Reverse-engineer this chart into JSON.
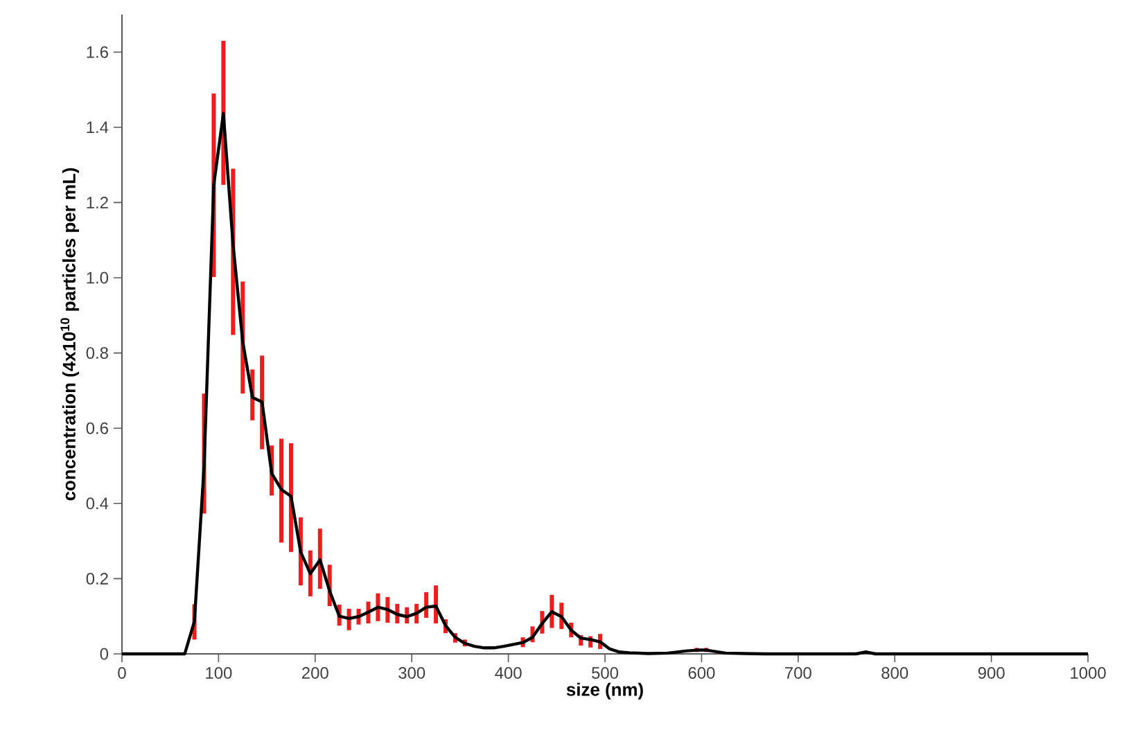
{
  "chart_data": {
    "type": "line",
    "xlabel": "size (nm)",
    "ylabel": "concentration (4x10$^{10}$ particles per mL)",
    "xlim": [
      0,
      1000
    ],
    "xticks": [
      0,
      100,
      200,
      300,
      400,
      500,
      600,
      700,
      800,
      900,
      1000
    ],
    "ylim": [
      0,
      1.7
    ],
    "yticks": [
      0,
      0.2,
      0.4,
      0.6,
      0.8,
      {
        "value": 1,
        "label": "1.0"
      },
      1.2,
      1.4,
      1.6
    ],
    "grid": false,
    "marker": "none",
    "line_style": "solid",
    "series": [
      {
        "color": "#000000",
        "x": [
          0,
          65,
          75,
          85,
          95,
          105,
          115,
          125,
          135,
          145,
          155,
          165,
          175,
          185,
          195,
          205,
          215,
          225,
          235,
          245,
          255,
          265,
          275,
          285,
          295,
          305,
          315,
          325,
          335,
          345,
          355,
          365,
          375,
          385,
          395,
          405,
          415,
          425,
          435,
          445,
          455,
          465,
          475,
          485,
          495,
          505,
          515,
          525,
          545,
          565,
          585,
          595,
          605,
          615,
          625,
          645,
          665,
          760,
          770,
          780,
          1000
        ],
        "values": [
          0,
          0,
          0.087,
          0.499,
          1.247,
          1.437,
          1.088,
          0.83,
          0.682,
          0.67,
          0.48,
          0.437,
          0.419,
          0.271,
          0.213,
          0.25,
          0.167,
          0.1,
          0.094,
          0.099,
          0.111,
          0.124,
          0.118,
          0.105,
          0.099,
          0.108,
          0.124,
          0.127,
          0.075,
          0.044,
          0.028,
          0.02,
          0.016,
          0.016,
          0.02,
          0.025,
          0.03,
          0.044,
          0.081,
          0.112,
          0.099,
          0.063,
          0.042,
          0.038,
          0.032,
          0.013,
          0.005,
          0.003,
          0.001,
          0.002,
          0.008,
          0.01,
          0.01,
          0.006,
          0.002,
          0.001,
          0,
          0,
          0.005,
          0,
          0
        ],
        "errors": [
          null,
          null,
          [
            0.038,
            0.132
          ],
          [
            0.373,
            0.692
          ],
          [
            1.002,
            1.49
          ],
          [
            1.247,
            1.63
          ],
          [
            0.848,
            1.29
          ],
          [
            0.692,
            0.99
          ],
          [
            0.621,
            0.756
          ],
          [
            0.544,
            0.793
          ],
          [
            0.421,
            0.554
          ],
          [
            0.296,
            0.572
          ],
          [
            0.271,
            0.56
          ],
          [
            0.182,
            0.363
          ],
          [
            0.153,
            0.275
          ],
          [
            0.173,
            0.333
          ],
          [
            0.127,
            0.237
          ],
          [
            0.075,
            0.131
          ],
          [
            0.063,
            0.12
          ],
          [
            0.078,
            0.12
          ],
          [
            0.081,
            0.139
          ],
          [
            0.087,
            0.161
          ],
          [
            0.083,
            0.151
          ],
          [
            0.081,
            0.133
          ],
          [
            0.081,
            0.124
          ],
          [
            0.081,
            0.133
          ],
          [
            0.096,
            0.164
          ],
          [
            0.081,
            0.182
          ],
          [
            0.055,
            0.092
          ],
          [
            0.03,
            0.055
          ],
          [
            0.02,
            0.038
          ],
          null,
          null,
          null,
          null,
          null,
          [
            0.018,
            0.044
          ],
          [
            0.031,
            0.073
          ],
          [
            0.054,
            0.114
          ],
          [
            0.069,
            0.157
          ],
          [
            0.066,
            0.136
          ],
          [
            0.044,
            0.083
          ],
          [
            0.022,
            0.05
          ],
          [
            0.017,
            0.047
          ],
          [
            0.013,
            0.053
          ],
          null,
          null,
          null,
          null,
          null,
          null,
          [
            0.005,
            0.016
          ],
          [
            0.005,
            0.016
          ],
          null,
          null,
          null,
          null,
          null,
          null,
          null,
          null
        ]
      }
    ]
  }
}
